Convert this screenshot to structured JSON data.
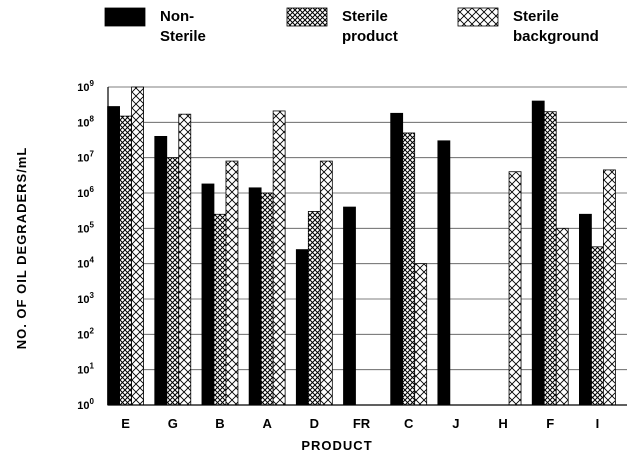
{
  "chart_data": {
    "type": "bar",
    "title": "",
    "xlabel": "PRODUCT",
    "ylabel": "NO. OF OIL DEGRADERS/mL",
    "yscale": "log",
    "ylim": [
      1,
      1000000000
    ],
    "grid": "horizontal",
    "legend_position": "top",
    "categories": [
      "E",
      "G",
      "B",
      "A",
      "D",
      "FR",
      "C",
      "J",
      "H",
      "F",
      "I"
    ],
    "y_ticks": [
      {
        "base": "10",
        "exp": "0"
      },
      {
        "base": "10",
        "exp": "1"
      },
      {
        "base": "10",
        "exp": "2"
      },
      {
        "base": "10",
        "exp": "3"
      },
      {
        "base": "10",
        "exp": "4"
      },
      {
        "base": "10",
        "exp": "5"
      },
      {
        "base": "10",
        "exp": "6"
      },
      {
        "base": "10",
        "exp": "7"
      },
      {
        "base": "10",
        "exp": "8"
      },
      {
        "base": "10",
        "exp": "9"
      }
    ],
    "series": [
      {
        "name": "Non-Sterile",
        "legend_lines": [
          "Non-",
          "Sterile"
        ],
        "pattern": "solid-black",
        "values": [
          280000000,
          40000000,
          1800000,
          1400000,
          25000,
          400000,
          180000000,
          30000000,
          null,
          400000000,
          250000
        ]
      },
      {
        "name": "Sterile product",
        "legend_lines": [
          "Sterile",
          "product"
        ],
        "pattern": "fine-crosshatch",
        "values": [
          150000000,
          10000000,
          250000,
          1000000,
          300000,
          null,
          50000000,
          null,
          null,
          200000000,
          30000
        ]
      },
      {
        "name": "Sterile background",
        "legend_lines": [
          "Sterile",
          "background"
        ],
        "pattern": "coarse-crosshatch",
        "values": [
          1000000000,
          170000000,
          8000000,
          210000000,
          8000000,
          null,
          10000,
          null,
          4000000,
          100000,
          4500000
        ]
      }
    ]
  }
}
